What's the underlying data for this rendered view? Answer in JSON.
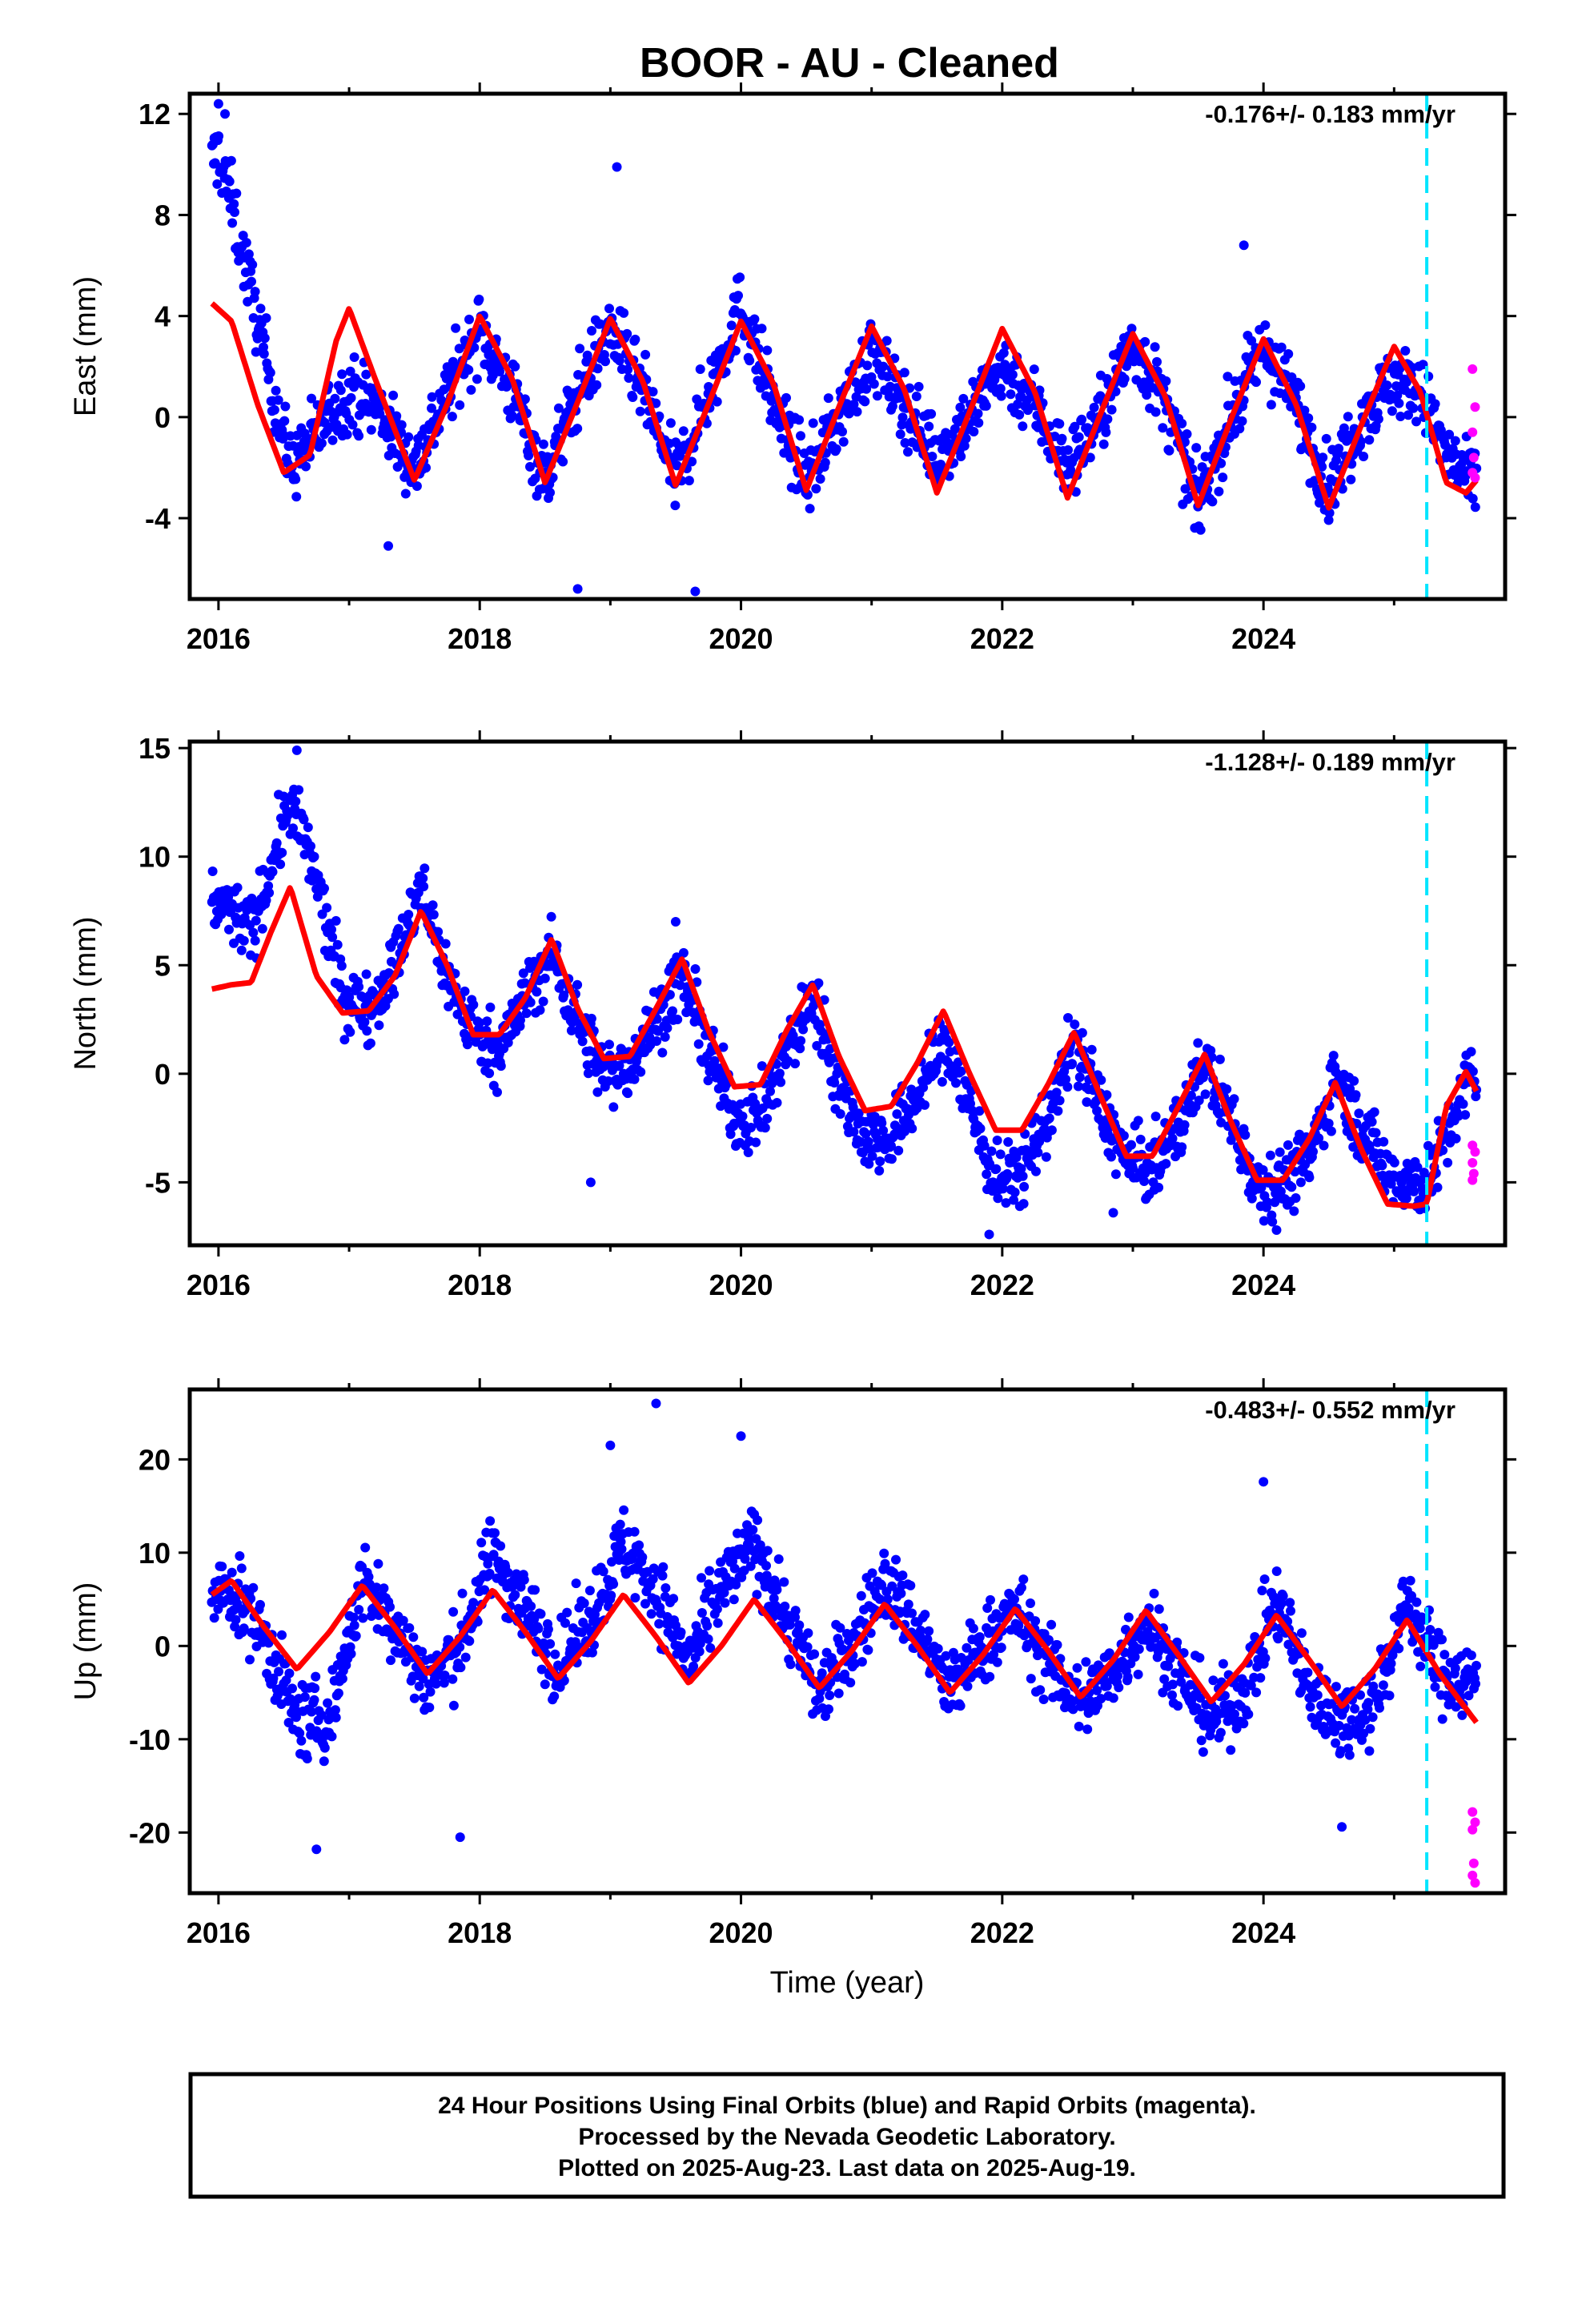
{
  "title": "BOOR  - AU - Cleaned",
  "x_axis_label": "Time (year)",
  "footer": {
    "line1": "24 Hour Positions Using Final Orbits (blue) and Rapid Orbits (magenta).",
    "line2": "Processed by the Nevada Geodetic Laboratory.",
    "line3": "Plotted on 2025-Aug-23. Last data on 2025-Aug-19."
  },
  "colors": {
    "final_orbits": "#0000ff",
    "rapid_orbits": "#ff00ff",
    "model_fit": "#ff0000",
    "marker_line": "#00e5ff"
  },
  "chart_data": [
    {
      "type": "scatter",
      "ylabel": "East (mm)",
      "rate": "-0.176+/- 0.183 mm/yr",
      "xlim": [
        2015.78,
        2025.85
      ],
      "ylim": [
        -7.2,
        12.8
      ],
      "xticks": [
        2016,
        2018,
        2020,
        2022,
        2024
      ],
      "xticklabels": [
        "2016",
        "2018",
        "2020",
        "2022",
        "2024"
      ],
      "yticks": [
        -4,
        0,
        4,
        8,
        12
      ],
      "yticklabels": [
        "-4",
        "0",
        "4",
        "8",
        "12"
      ],
      "marker_line_x": 2025.25,
      "fit": {
        "name": "model",
        "x": [
          2015.95,
          2016.1,
          2016.3,
          2016.5,
          2016.7,
          2016.9,
          2017.0,
          2017.2,
          2017.5,
          2017.75,
          2018.0,
          2018.25,
          2018.5,
          2018.75,
          2019.0,
          2019.25,
          2019.5,
          2019.75,
          2020.0,
          2020.25,
          2020.5,
          2020.75,
          2021.0,
          2021.25,
          2021.5,
          2021.75,
          2022.0,
          2022.25,
          2022.5,
          2022.75,
          2023.0,
          2023.25,
          2023.5,
          2023.75,
          2024.0,
          2024.25,
          2024.5,
          2024.75,
          2025.0,
          2025.2,
          2025.4,
          2025.55,
          2025.63
        ],
        "y": [
          4.5,
          3.8,
          0.5,
          -2.2,
          -1.5,
          3.0,
          4.3,
          1.5,
          -2.5,
          0.5,
          4.0,
          1.5,
          -2.6,
          0.6,
          3.9,
          1.4,
          -2.7,
          0.5,
          3.8,
          1.3,
          -2.9,
          0.4,
          3.6,
          1.1,
          -3.0,
          0.2,
          3.5,
          1.0,
          -3.2,
          0.1,
          3.3,
          0.8,
          -3.5,
          -0.1,
          3.1,
          0.5,
          -3.6,
          -0.3,
          2.8,
          1.0,
          -2.6,
          -3.0,
          -2.5
        ]
      },
      "final_trend": {
        "x": [
          2015.95,
          2016.0,
          2016.1,
          2016.25,
          2016.4,
          2016.55,
          2016.7,
          2016.9,
          2017.0,
          2017.2,
          2017.5,
          2017.75,
          2018.0,
          2018.25,
          2018.5,
          2018.75,
          2019.0,
          2019.25,
          2019.5,
          2019.75,
          2020.0,
          2020.25,
          2020.5,
          2020.75,
          2021.0,
          2021.25,
          2021.5,
          2021.75,
          2022.0,
          2022.25,
          2022.5,
          2022.75,
          2023.0,
          2023.25,
          2023.5,
          2023.75,
          2024.0,
          2024.25,
          2024.5,
          2024.75,
          2025.0,
          2025.2,
          2025.4,
          2025.55,
          2025.63
        ],
        "y": [
          10.0,
          10.5,
          8.5,
          5.0,
          1.5,
          -2.0,
          -1.0,
          0.5,
          1.0,
          0.5,
          -2.0,
          1.0,
          3.5,
          1.0,
          -2.5,
          1.0,
          3.5,
          1.0,
          -2.5,
          1.0,
          4.5,
          0.5,
          -2.5,
          0.0,
          2.5,
          0.5,
          -1.5,
          0.0,
          2.0,
          0.5,
          -2.0,
          0.0,
          3.0,
          0.5,
          -3.5,
          0.0,
          2.8,
          0.5,
          -2.8,
          0.0,
          1.5,
          1.0,
          -1.5,
          -2.5,
          -2.5
        ],
        "spread": 1.1
      },
      "final_outliers": [
        [
          2016.0,
          12.4
        ],
        [
          2016.05,
          12.0
        ],
        [
          2018.75,
          -6.8
        ],
        [
          2019.05,
          9.9
        ],
        [
          2019.65,
          -6.9
        ],
        [
          2023.85,
          6.8
        ],
        [
          2017.3,
          -5.1
        ]
      ],
      "rapid_points": [
        [
          2025.6,
          1.9
        ],
        [
          2025.62,
          0.4
        ],
        [
          2025.6,
          -0.6
        ],
        [
          2025.61,
          -1.6
        ],
        [
          2025.6,
          -2.2
        ],
        [
          2025.62,
          -2.4
        ]
      ]
    },
    {
      "type": "scatter",
      "ylabel": "North (mm)",
      "rate": "-1.128+/- 0.189 mm/yr",
      "xlim": [
        2015.78,
        2025.85
      ],
      "ylim": [
        -7.9,
        15.3
      ],
      "xticks": [
        2016,
        2018,
        2020,
        2022,
        2024
      ],
      "xticklabels": [
        "2016",
        "2018",
        "2020",
        "2022",
        "2024"
      ],
      "yticks": [
        -5,
        0,
        5,
        10,
        15
      ],
      "yticklabels": [
        "-5",
        "0",
        "5",
        "10",
        "15"
      ],
      "marker_line_x": 2025.25,
      "fit": {
        "name": "model",
        "x": [
          2015.95,
          2016.1,
          2016.25,
          2016.4,
          2016.55,
          2016.75,
          2016.95,
          2017.15,
          2017.35,
          2017.55,
          2017.75,
          2017.95,
          2018.15,
          2018.35,
          2018.55,
          2018.75,
          2018.95,
          2019.15,
          2019.35,
          2019.55,
          2019.75,
          2019.95,
          2020.15,
          2020.35,
          2020.55,
          2020.75,
          2020.95,
          2021.15,
          2021.35,
          2021.55,
          2021.75,
          2021.95,
          2022.15,
          2022.35,
          2022.55,
          2022.75,
          2022.95,
          2023.15,
          2023.35,
          2023.55,
          2023.75,
          2023.95,
          2024.15,
          2024.35,
          2024.55,
          2024.75,
          2024.95,
          2025.15,
          2025.25,
          2025.4,
          2025.55,
          2025.63
        ],
        "y": [
          3.9,
          4.1,
          4.2,
          6.5,
          8.6,
          4.5,
          2.8,
          2.9,
          4.5,
          7.5,
          5.0,
          1.8,
          1.8,
          3.5,
          6.2,
          3.0,
          0.7,
          0.8,
          3.0,
          5.3,
          2.0,
          -0.6,
          -0.5,
          2.0,
          4.1,
          0.8,
          -1.7,
          -1.5,
          0.5,
          2.9,
          0.0,
          -2.6,
          -2.6,
          -0.5,
          1.9,
          -1.0,
          -3.8,
          -3.8,
          -1.5,
          0.9,
          -2.2,
          -4.9,
          -4.9,
          -3.0,
          -0.4,
          -3.5,
          -6.0,
          -6.1,
          -6.0,
          -1.5,
          0.1,
          -0.8
        ]
      },
      "final_trend": {
        "x": [
          2015.95,
          2016.1,
          2016.25,
          2016.4,
          2016.55,
          2016.75,
          2016.95,
          2017.15,
          2017.35,
          2017.55,
          2017.75,
          2017.95,
          2018.15,
          2018.35,
          2018.55,
          2018.75,
          2018.95,
          2019.15,
          2019.35,
          2019.55,
          2019.75,
          2019.95,
          2020.15,
          2020.35,
          2020.55,
          2020.75,
          2020.95,
          2021.15,
          2021.35,
          2021.55,
          2021.75,
          2021.95,
          2022.15,
          2022.35,
          2022.55,
          2022.75,
          2022.95,
          2023.15,
          2023.35,
          2023.55,
          2023.75,
          2023.95,
          2024.15,
          2024.35,
          2024.55,
          2024.75,
          2024.95,
          2025.15,
          2025.25,
          2025.4,
          2025.55,
          2025.63
        ],
        "y": [
          8.0,
          7.5,
          6.5,
          9.5,
          12.5,
          9.0,
          3.5,
          3.0,
          5.0,
          8.5,
          4.5,
          2.0,
          1.0,
          3.5,
          5.5,
          2.5,
          0.0,
          0.5,
          2.5,
          4.5,
          1.0,
          -2.0,
          -2.0,
          1.0,
          3.5,
          -0.5,
          -3.0,
          -3.0,
          -1.0,
          1.5,
          -1.5,
          -5.0,
          -4.5,
          -2.0,
          1.5,
          -1.5,
          -4.0,
          -4.5,
          -2.5,
          0.5,
          -2.0,
          -5.0,
          -5.0,
          -4.0,
          0.0,
          -2.5,
          -4.5,
          -5.0,
          -5.0,
          -3.0,
          -0.5,
          0.0
        ],
        "spread": 1.2
      },
      "final_outliers": [
        [
          2016.6,
          14.9
        ],
        [
          2019.5,
          7.0
        ],
        [
          2018.85,
          -5.0
        ],
        [
          2021.9,
          -7.4
        ],
        [
          2022.85,
          -6.4
        ],
        [
          2024.1,
          -7.2
        ]
      ],
      "rapid_points": [
        [
          2025.6,
          -3.3
        ],
        [
          2025.62,
          -3.6
        ],
        [
          2025.6,
          -4.1
        ],
        [
          2025.61,
          -4.6
        ],
        [
          2025.6,
          -4.9
        ]
      ]
    },
    {
      "type": "scatter",
      "ylabel": "Up (mm)",
      "rate": "-0.483+/- 0.552 mm/yr",
      "xlim": [
        2015.78,
        2025.85
      ],
      "ylim": [
        -26.5,
        27.5
      ],
      "xticks": [
        2016,
        2018,
        2020,
        2022,
        2024
      ],
      "xticklabels": [
        "2016",
        "2018",
        "2020",
        "2022",
        "2024"
      ],
      "yticks": [
        -20,
        -10,
        0,
        10,
        20
      ],
      "yticklabels": [
        "-20",
        "-10",
        "0",
        "10",
        "20"
      ],
      "marker_line_x": 2025.25,
      "fit": {
        "name": "model",
        "x": [
          2015.95,
          2016.1,
          2016.35,
          2016.6,
          2016.85,
          2017.1,
          2017.35,
          2017.6,
          2017.85,
          2018.1,
          2018.35,
          2018.6,
          2018.85,
          2019.1,
          2019.35,
          2019.6,
          2019.85,
          2020.1,
          2020.35,
          2020.6,
          2020.85,
          2021.1,
          2021.35,
          2021.6,
          2021.85,
          2022.1,
          2022.35,
          2022.6,
          2022.85,
          2023.1,
          2023.35,
          2023.6,
          2023.85,
          2024.1,
          2024.35,
          2024.6,
          2024.85,
          2025.1,
          2025.35,
          2025.63
        ],
        "y": [
          5.5,
          7.0,
          2.0,
          -2.5,
          1.5,
          6.5,
          2.0,
          -3.0,
          1.0,
          6.0,
          1.5,
          -3.5,
          0.5,
          5.5,
          1.0,
          -4.0,
          0.0,
          5.0,
          0.5,
          -4.5,
          -0.5,
          4.5,
          0.0,
          -5.0,
          -1.0,
          4.0,
          -0.5,
          -5.5,
          -1.5,
          3.8,
          -1.0,
          -6.0,
          -2.0,
          3.3,
          -1.5,
          -6.5,
          -2.5,
          2.8,
          -3.0,
          -8.2
        ]
      },
      "final_trend": {
        "x": [
          2015.95,
          2016.1,
          2016.35,
          2016.6,
          2016.85,
          2017.1,
          2017.35,
          2017.6,
          2017.85,
          2018.1,
          2018.35,
          2018.6,
          2018.85,
          2019.1,
          2019.35,
          2019.6,
          2019.85,
          2020.1,
          2020.35,
          2020.6,
          2020.85,
          2021.1,
          2021.35,
          2021.6,
          2021.85,
          2022.1,
          2022.35,
          2022.6,
          2022.85,
          2023.1,
          2023.35,
          2023.6,
          2023.85,
          2024.1,
          2024.35,
          2024.6,
          2024.85,
          2025.1,
          2025.35,
          2025.63
        ],
        "y": [
          5.0,
          6.0,
          1.0,
          -8.0,
          -8.0,
          7.0,
          2.0,
          -4.0,
          0.0,
          10.0,
          4.0,
          -2.0,
          3.0,
          11.0,
          6.0,
          -2.0,
          6.0,
          11.0,
          3.0,
          -5.0,
          0.0,
          7.0,
          2.0,
          -5.0,
          0.0,
          4.0,
          -2.0,
          -6.0,
          -3.0,
          3.0,
          -3.0,
          -8.0,
          -5.0,
          5.0,
          -5.0,
          -8.0,
          -6.0,
          5.0,
          -3.0,
          -4.0
        ],
        "spread": 3.2
      },
      "final_outliers": [
        [
          2016.75,
          -21.8
        ],
        [
          2017.85,
          -20.5
        ],
        [
          2019.35,
          26.0
        ],
        [
          2020.0,
          22.5
        ],
        [
          2024.0,
          17.6
        ],
        [
          2024.6,
          -19.4
        ],
        [
          2019.0,
          21.5
        ]
      ],
      "rapid_points": [
        [
          2025.6,
          -17.8
        ],
        [
          2025.62,
          -18.9
        ],
        [
          2025.6,
          -19.7
        ],
        [
          2025.61,
          -23.3
        ],
        [
          2025.6,
          -24.6
        ],
        [
          2025.62,
          -25.4
        ]
      ]
    }
  ]
}
